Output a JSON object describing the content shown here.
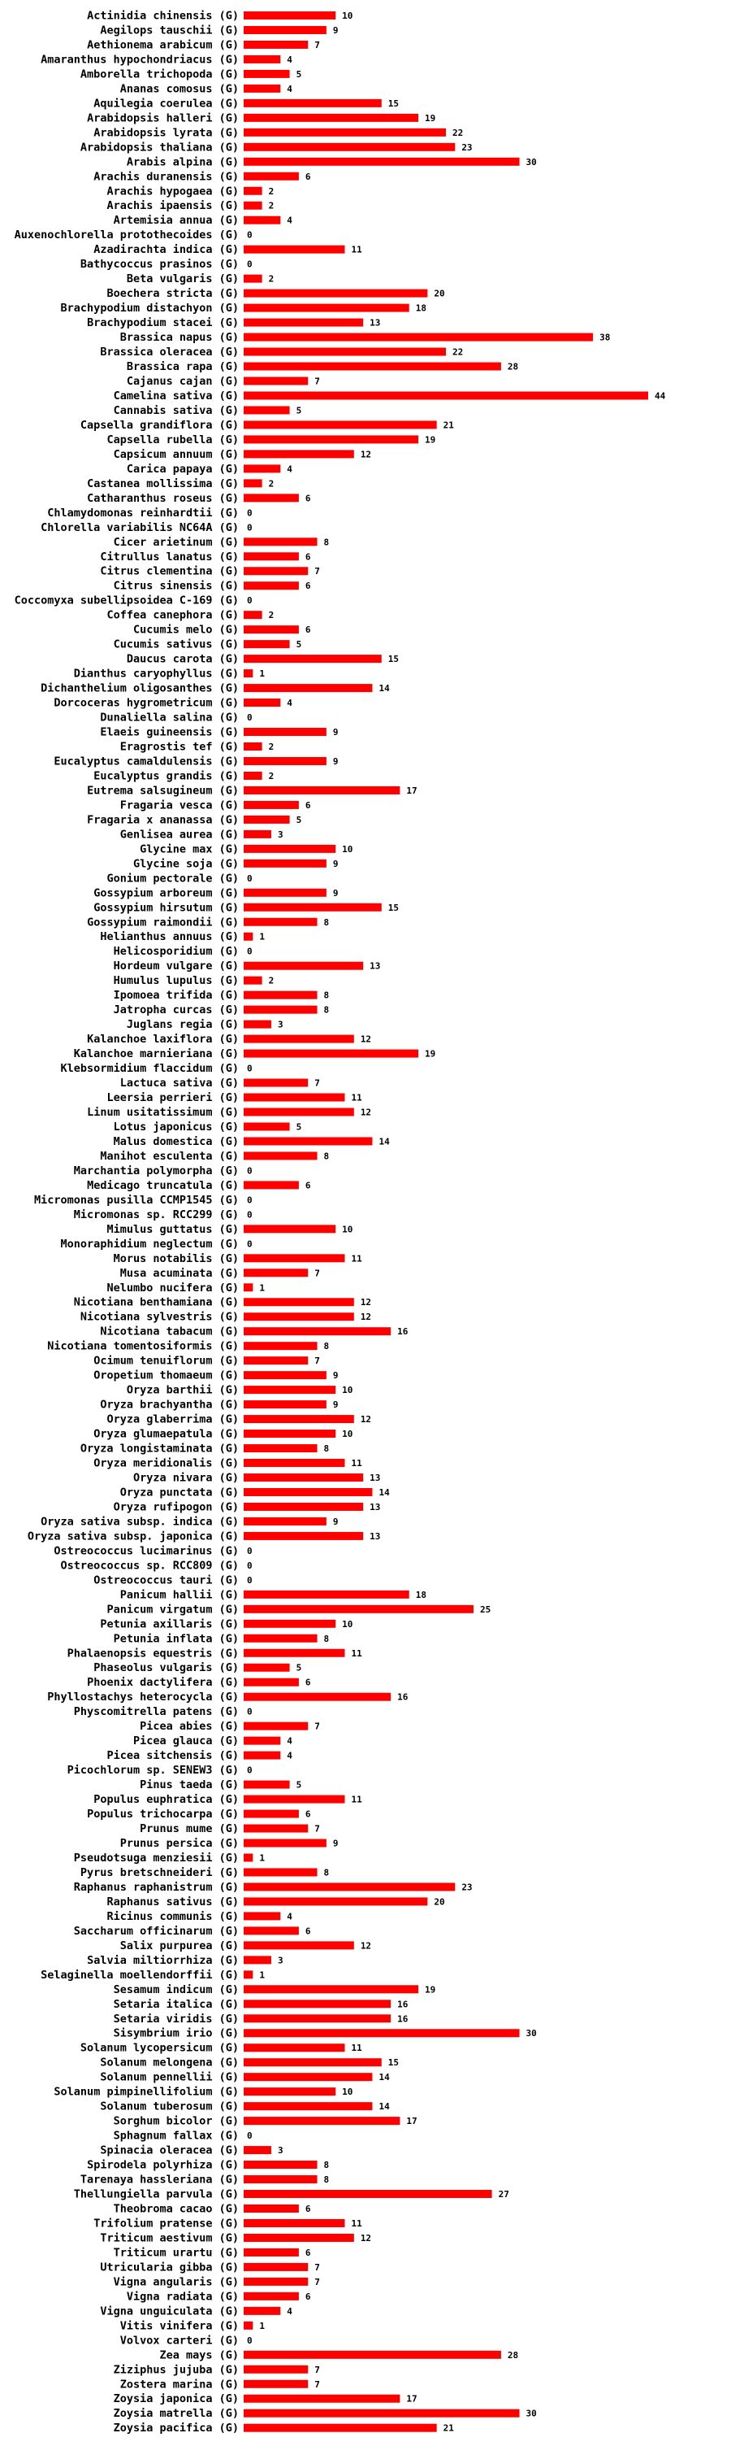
{
  "colors": {
    "bar": "#ff0000",
    "text": "#000000",
    "background": "#ffffff"
  },
  "chart_data": {
    "type": "bar",
    "orientation": "horizontal",
    "title": "",
    "xlabel": "",
    "ylabel": "",
    "grid": false,
    "xlim": [
      0,
      44
    ],
    "categories": [
      "Actinidia chinensis (G)",
      "Aegilops tauschii (G)",
      "Aethionema arabicum (G)",
      "Amaranthus hypochondriacus (G)",
      "Amborella trichopoda (G)",
      "Ananas comosus (G)",
      "Aquilegia coerulea (G)",
      "Arabidopsis halleri (G)",
      "Arabidopsis lyrata (G)",
      "Arabidopsis thaliana (G)",
      "Arabis alpina (G)",
      "Arachis duranensis (G)",
      "Arachis hypogaea (G)",
      "Arachis ipaensis (G)",
      "Artemisia annua (G)",
      "Auxenochlorella protothecoides (G)",
      "Azadirachta indica (G)",
      "Bathycoccus prasinos (G)",
      "Beta vulgaris (G)",
      "Boechera stricta (G)",
      "Brachypodium distachyon (G)",
      "Brachypodium stacei (G)",
      "Brassica napus (G)",
      "Brassica oleracea (G)",
      "Brassica rapa (G)",
      "Cajanus cajan (G)",
      "Camelina sativa (G)",
      "Cannabis sativa (G)",
      "Capsella grandiflora (G)",
      "Capsella rubella (G)",
      "Capsicum annuum (G)",
      "Carica papaya (G)",
      "Castanea mollissima (G)",
      "Catharanthus roseus (G)",
      "Chlamydomonas reinhardtii (G)",
      "Chlorella variabilis NC64A (G)",
      "Cicer arietinum (G)",
      "Citrullus lanatus (G)",
      "Citrus clementina (G)",
      "Citrus sinensis (G)",
      "Coccomyxa subellipsoidea C-169 (G)",
      "Coffea canephora (G)",
      "Cucumis melo (G)",
      "Cucumis sativus (G)",
      "Daucus carota (G)",
      "Dianthus caryophyllus (G)",
      "Dichanthelium oligosanthes (G)",
      "Dorcoceras hygrometricum (G)",
      "Dunaliella salina (G)",
      "Elaeis guineensis (G)",
      "Eragrostis tef (G)",
      "Eucalyptus camaldulensis (G)",
      "Eucalyptus grandis (G)",
      "Eutrema salsugineum (G)",
      "Fragaria vesca (G)",
      "Fragaria x ananassa (G)",
      "Genlisea aurea (G)",
      "Glycine max (G)",
      "Glycine soja (G)",
      "Gonium pectorale (G)",
      "Gossypium arboreum (G)",
      "Gossypium hirsutum (G)",
      "Gossypium raimondii (G)",
      "Helianthus annuus (G)",
      "Helicosporidium (G)",
      "Hordeum vulgare (G)",
      "Humulus lupulus (G)",
      "Ipomoea trifida (G)",
      "Jatropha curcas (G)",
      "Juglans regia (G)",
      "Kalanchoe laxiflora (G)",
      "Kalanchoe marnieriana (G)",
      "Klebsormidium flaccidum (G)",
      "Lactuca sativa (G)",
      "Leersia perrieri (G)",
      "Linum usitatissimum (G)",
      "Lotus japonicus (G)",
      "Malus domestica (G)",
      "Manihot esculenta (G)",
      "Marchantia polymorpha (G)",
      "Medicago truncatula (G)",
      "Micromonas pusilla CCMP1545 (G)",
      "Micromonas sp. RCC299 (G)",
      "Mimulus guttatus (G)",
      "Monoraphidium neglectum (G)",
      "Morus notabilis (G)",
      "Musa acuminata (G)",
      "Nelumbo nucifera (G)",
      "Nicotiana benthamiana (G)",
      "Nicotiana sylvestris (G)",
      "Nicotiana tabacum (G)",
      "Nicotiana tomentosiformis (G)",
      "Ocimum tenuiflorum (G)",
      "Oropetium thomaeum (G)",
      "Oryza barthii (G)",
      "Oryza brachyantha (G)",
      "Oryza glaberrima (G)",
      "Oryza glumaepatula (G)",
      "Oryza longistaminata (G)",
      "Oryza meridionalis (G)",
      "Oryza nivara (G)",
      "Oryza punctata (G)",
      "Oryza rufipogon (G)",
      "Oryza sativa subsp. indica (G)",
      "Oryza sativa subsp. japonica (G)",
      "Ostreococcus lucimarinus (G)",
      "Ostreococcus sp. RCC809 (G)",
      "Ostreococcus tauri (G)",
      "Panicum hallii (G)",
      "Panicum virgatum (G)",
      "Petunia axillaris (G)",
      "Petunia inflata (G)",
      "Phalaenopsis equestris (G)",
      "Phaseolus vulgaris (G)",
      "Phoenix dactylifera (G)",
      "Phyllostachys heterocycla (G)",
      "Physcomitrella patens (G)",
      "Picea abies (G)",
      "Picea glauca (G)",
      "Picea sitchensis (G)",
      "Picochlorum sp. SENEW3 (G)",
      "Pinus taeda (G)",
      "Populus euphratica (G)",
      "Populus trichocarpa (G)",
      "Prunus mume (G)",
      "Prunus persica (G)",
      "Pseudotsuga menziesii (G)",
      "Pyrus bretschneideri (G)",
      "Raphanus raphanistrum (G)",
      "Raphanus sativus (G)",
      "Ricinus communis (G)",
      "Saccharum officinarum (G)",
      "Salix purpurea (G)",
      "Salvia miltiorrhiza (G)",
      "Selaginella moellendorffii (G)",
      "Sesamum indicum (G)",
      "Setaria italica (G)",
      "Setaria viridis (G)",
      "Sisymbrium irio (G)",
      "Solanum lycopersicum (G)",
      "Solanum melongena (G)",
      "Solanum pennellii (G)",
      "Solanum pimpinellifolium (G)",
      "Solanum tuberosum (G)",
      "Sorghum bicolor (G)",
      "Sphagnum fallax (G)",
      "Spinacia oleracea (G)",
      "Spirodela polyrhiza (G)",
      "Tarenaya hassleriana (G)",
      "Thellungiella parvula (G)",
      "Theobroma cacao (G)",
      "Trifolium pratense (G)",
      "Triticum aestivum (G)",
      "Triticum urartu (G)",
      "Utricularia gibba (G)",
      "Vigna angularis (G)",
      "Vigna radiata (G)",
      "Vigna unguiculata (G)",
      "Vitis vinifera (G)",
      "Volvox carteri (G)",
      "Zea mays (G)",
      "Ziziphus jujuba (G)",
      "Zostera marina (G)",
      "Zoysia japonica (G)",
      "Zoysia matrella (G)",
      "Zoysia pacifica (G)"
    ],
    "values": [
      10,
      9,
      7,
      4,
      5,
      4,
      15,
      19,
      22,
      23,
      30,
      6,
      2,
      2,
      4,
      0,
      11,
      0,
      2,
      20,
      18,
      13,
      38,
      22,
      28,
      7,
      44,
      5,
      21,
      19,
      12,
      4,
      2,
      6,
      0,
      0,
      8,
      6,
      7,
      6,
      0,
      2,
      6,
      5,
      15,
      1,
      14,
      4,
      0,
      9,
      2,
      9,
      2,
      17,
      6,
      5,
      3,
      10,
      9,
      0,
      9,
      15,
      8,
      1,
      0,
      13,
      2,
      8,
      8,
      3,
      12,
      19,
      0,
      7,
      11,
      12,
      5,
      14,
      8,
      0,
      6,
      0,
      0,
      10,
      0,
      11,
      7,
      1,
      12,
      12,
      16,
      8,
      7,
      9,
      10,
      9,
      12,
      10,
      8,
      11,
      13,
      14,
      13,
      9,
      13,
      0,
      0,
      0,
      18,
      25,
      10,
      8,
      11,
      5,
      6,
      16,
      0,
      7,
      4,
      4,
      0,
      5,
      11,
      6,
      7,
      9,
      1,
      8,
      23,
      20,
      4,
      6,
      12,
      3,
      1,
      19,
      16,
      16,
      30,
      11,
      15,
      14,
      10,
      14,
      17,
      0,
      3,
      8,
      8,
      27,
      6,
      11,
      12,
      6,
      7,
      7,
      6,
      4,
      1,
      0,
      28,
      7,
      7,
      17,
      30,
      21
    ]
  }
}
